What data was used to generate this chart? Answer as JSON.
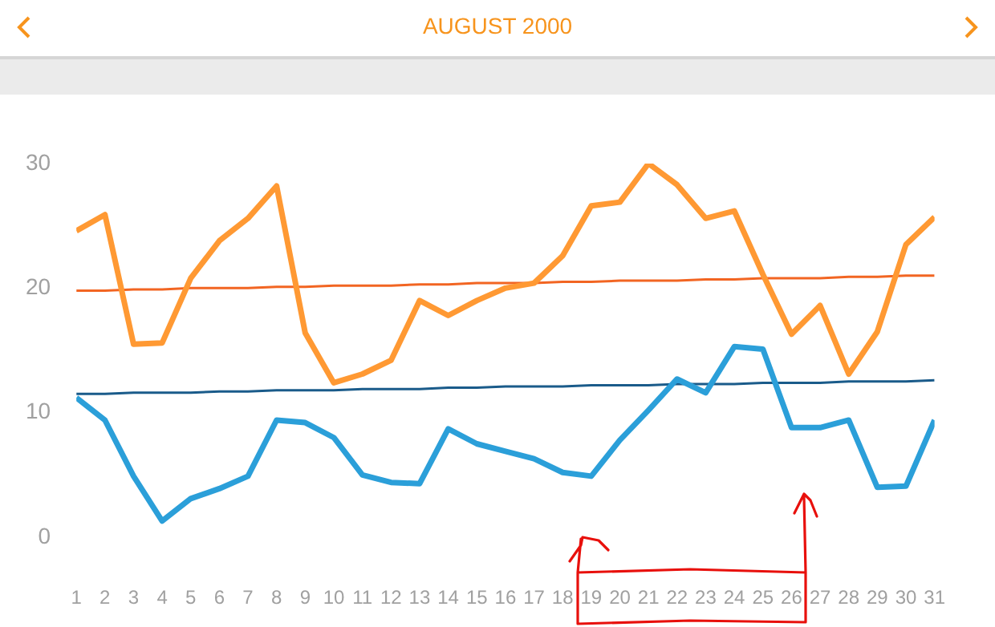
{
  "chart_data": {
    "type": "line",
    "title": "AUGUST 2000",
    "x": [
      1,
      2,
      3,
      4,
      5,
      6,
      7,
      8,
      9,
      10,
      11,
      12,
      13,
      14,
      15,
      16,
      17,
      18,
      19,
      20,
      21,
      22,
      23,
      24,
      25,
      26,
      27,
      28,
      29,
      30,
      31
    ],
    "series": [
      {
        "color": "#ff9933",
        "values": [
          24.6,
          25.9,
          15.5,
          15.6,
          20.8,
          23.8,
          25.6,
          28.2,
          16.4,
          12.4,
          13.1,
          14.2,
          19.0,
          17.8,
          19.0,
          20.0,
          20.4,
          22.6,
          26.6,
          26.9,
          30.0,
          28.3,
          25.6,
          26.2,
          21.1,
          16.3,
          18.6,
          13.1,
          16.5,
          23.5,
          25.7
        ]
      },
      {
        "color": "#2b9fd9",
        "values": [
          11.2,
          9.4,
          4.9,
          1.3,
          3.1,
          3.9,
          4.9,
          9.4,
          9.2,
          8.0,
          5.0,
          4.4,
          4.3,
          8.7,
          7.5,
          6.9,
          6.3,
          5.2,
          4.9,
          7.8,
          10.2,
          12.7,
          11.6,
          15.3,
          15.1,
          8.8,
          8.8,
          9.4,
          4.0,
          4.1,
          9.4
        ]
      },
      {
        "color": "#f26522",
        "values": [
          19.8,
          19.8,
          19.9,
          19.9,
          20.0,
          20.0,
          20.0,
          20.1,
          20.1,
          20.2,
          20.2,
          20.2,
          20.3,
          20.3,
          20.4,
          20.4,
          20.4,
          20.5,
          20.5,
          20.6,
          20.6,
          20.6,
          20.7,
          20.7,
          20.8,
          20.8,
          20.8,
          20.9,
          20.9,
          21.0,
          21.0
        ]
      },
      {
        "color": "#1a5b8a",
        "values": [
          11.5,
          11.5,
          11.6,
          11.6,
          11.6,
          11.7,
          11.7,
          11.8,
          11.8,
          11.8,
          11.9,
          11.9,
          11.9,
          12.0,
          12.0,
          12.1,
          12.1,
          12.1,
          12.2,
          12.2,
          12.2,
          12.3,
          12.3,
          12.3,
          12.4,
          12.4,
          12.4,
          12.5,
          12.5,
          12.5,
          12.6
        ]
      }
    ],
    "xlim": [
      1,
      31
    ],
    "xticks": [
      1,
      2,
      3,
      4,
      5,
      6,
      7,
      8,
      9,
      10,
      11,
      12,
      13,
      14,
      15,
      16,
      17,
      18,
      19,
      20,
      21,
      22,
      23,
      24,
      25,
      26,
      27,
      28,
      29,
      30,
      31
    ],
    "ylim": [
      0,
      30
    ],
    "yticks": [
      0,
      10,
      20,
      30
    ],
    "grid": false,
    "legend": false,
    "marker": "none",
    "line_style": "solid"
  }
}
